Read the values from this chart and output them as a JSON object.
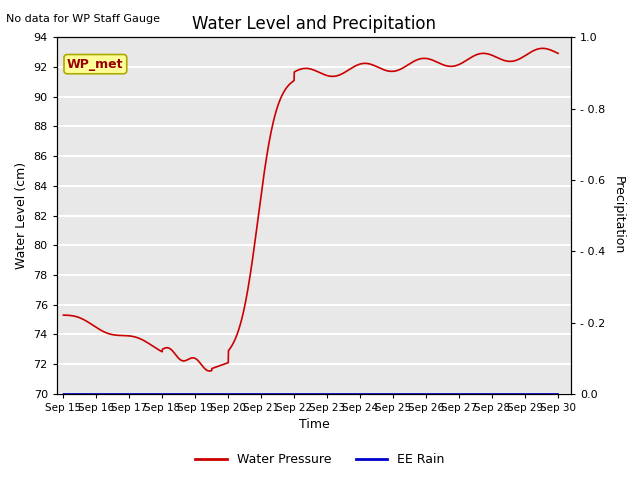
{
  "title": "Water Level and Precipitation",
  "subtitle": "No data for WP Staff Gauge",
  "xlabel": "Time",
  "ylabel_left": "Water Level (cm)",
  "ylabel_right": "Precipitation",
  "legend_label_red": "Water Pressure",
  "legend_label_blue": "EE Rain",
  "annotation": "WP_met",
  "ylim_left": [
    70,
    94
  ],
  "ylim_right": [
    0.0,
    1.0
  ],
  "yticks_left": [
    70,
    72,
    74,
    76,
    78,
    80,
    82,
    84,
    86,
    88,
    90,
    92,
    94
  ],
  "yticks_right": [
    0.0,
    0.2,
    0.4,
    0.6,
    0.8,
    1.0
  ],
  "ytick_right_labels": [
    "0.0",
    "– 0.2",
    "– 0.4",
    "– 0.6",
    "– 0.8",
    "1.0"
  ],
  "background_color": "#e8e8e8",
  "figure_background": "#ffffff",
  "line_color_red": "#cc0000",
  "line_color_blue": "#0000cc",
  "annotation_bg": "#ffff99",
  "annotation_text_color": "#990000",
  "annotation_edge_color": "#aaaa00",
  "x_dates": [
    "Sep 15",
    "Sep 16",
    "Sep 17",
    "Sep 18",
    "Sep 19",
    "Sep 20",
    "Sep 21",
    "Sep 22",
    "Sep 23",
    "Sep 24",
    "Sep 25",
    "Sep 26",
    "Sep 27",
    "Sep 28",
    "Sep 29",
    "Sep 30"
  ]
}
